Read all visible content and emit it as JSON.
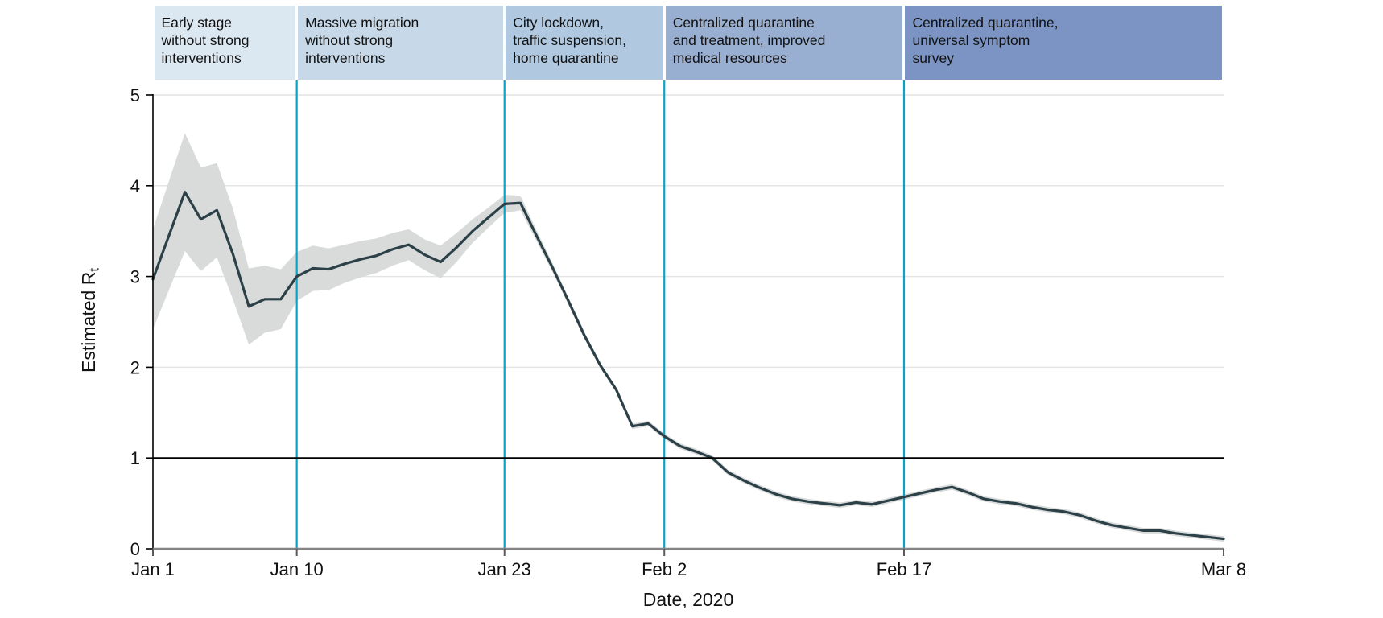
{
  "figure": {
    "x_axis_title": "Date, 2020",
    "y_axis_title": "Estimated R",
    "y_axis_title_sub": "t"
  },
  "colors": {
    "background": "#ffffff",
    "line": "#2c4048",
    "ci_band": "#d8dbda",
    "divider": "#0aa2c5",
    "reference_line": "#000000",
    "gridline": "#e4e4e4",
    "x_axis": "#848484",
    "y_axis": "#000000",
    "tick": "#5a5a5a",
    "text": "#111111"
  },
  "phases": [
    {
      "label": "Early stage without strong interventions",
      "lines": [
        "Early stage",
        "without strong",
        "interventions"
      ],
      "start": "Jan 1",
      "end": "Jan 10",
      "start_day": 0,
      "end_day": 9,
      "color": "#dce8f1"
    },
    {
      "label": "Massive migration without strong interventions",
      "lines": [
        "Massive migration",
        "without strong",
        "interventions"
      ],
      "start": "Jan 10",
      "end": "Jan 23",
      "start_day": 9,
      "end_day": 22,
      "color": "#c7d9e8"
    },
    {
      "label": "City lockdown, traffic suspension, home quarantine",
      "lines": [
        "City lockdown,",
        "traffic suspension,",
        "home quarantine"
      ],
      "start": "Jan 23",
      "end": "Feb 2",
      "start_day": 22,
      "end_day": 32,
      "color": "#b1c9e0"
    },
    {
      "label": "Centralized quarantine and treatment, improved medical resources",
      "lines": [
        "Centralized quarantine",
        "and treatment, improved",
        "medical resources"
      ],
      "start": "Feb 2",
      "end": "Feb 17",
      "start_day": 32,
      "end_day": 47,
      "color": "#99afd1"
    },
    {
      "label": "Centralized quarantine, universal symptom survey",
      "lines": [
        "Centralized quarantine,",
        "universal symptom",
        "survey"
      ],
      "start": "Feb 17",
      "end": "Mar 8",
      "start_day": 47,
      "end_day": 67,
      "color": "#7b94c3"
    }
  ],
  "chart_data": {
    "type": "line",
    "title": "",
    "xlabel": "Date, 2020",
    "ylabel": "Estimated Rt",
    "ylim": [
      0,
      5
    ],
    "grid": "horizontal",
    "legend": "none",
    "reference_line_y": 1,
    "vertical_divider_days": [
      9,
      22,
      32,
      47
    ],
    "x_ticks": [
      {
        "label": "Jan 1",
        "day": 0
      },
      {
        "label": "Jan 10",
        "day": 9
      },
      {
        "label": "Jan 23",
        "day": 22
      },
      {
        "label": "Feb 2",
        "day": 32
      },
      {
        "label": "Feb 17",
        "day": 47
      },
      {
        "label": "Mar 8",
        "day": 67
      }
    ],
    "y_ticks": [
      {
        "label": "0",
        "value": 0
      },
      {
        "label": "1",
        "value": 1
      },
      {
        "label": "2",
        "value": 2
      },
      {
        "label": "3",
        "value": 3
      },
      {
        "label": "4",
        "value": 4
      },
      {
        "label": "5",
        "value": 5
      }
    ],
    "dates": [
      "Jan 1",
      "Jan 2",
      "Jan 3",
      "Jan 4",
      "Jan 5",
      "Jan 6",
      "Jan 7",
      "Jan 8",
      "Jan 9",
      "Jan 10",
      "Jan 11",
      "Jan 12",
      "Jan 13",
      "Jan 14",
      "Jan 15",
      "Jan 16",
      "Jan 17",
      "Jan 18",
      "Jan 19",
      "Jan 20",
      "Jan 21",
      "Jan 22",
      "Jan 23",
      "Jan 24",
      "Jan 25",
      "Jan 26",
      "Jan 27",
      "Jan 28",
      "Jan 29",
      "Jan 30",
      "Jan 31",
      "Feb 1",
      "Feb 2",
      "Feb 3",
      "Feb 4",
      "Feb 5",
      "Feb 6",
      "Feb 7",
      "Feb 8",
      "Feb 9",
      "Feb 10",
      "Feb 11",
      "Feb 12",
      "Feb 13",
      "Feb 14",
      "Feb 15",
      "Feb 16",
      "Feb 17",
      "Feb 18",
      "Feb 19",
      "Feb 20",
      "Feb 21",
      "Feb 22",
      "Feb 23",
      "Feb 24",
      "Feb 25",
      "Feb 26",
      "Feb 27",
      "Feb 28",
      "Feb 29",
      "Mar 1",
      "Mar 2",
      "Mar 3",
      "Mar 4",
      "Mar 5",
      "Mar 6",
      "Mar 7",
      "Mar 8"
    ],
    "series": [
      {
        "name": "Estimated Rt (mean)",
        "values": [
          2.97,
          3.45,
          3.93,
          3.63,
          3.73,
          3.25,
          2.67,
          2.75,
          2.75,
          3.0,
          3.09,
          3.08,
          3.14,
          3.19,
          3.23,
          3.3,
          3.35,
          3.24,
          3.16,
          3.32,
          3.5,
          3.65,
          3.8,
          3.81,
          3.45,
          3.1,
          2.73,
          2.35,
          2.02,
          1.75,
          1.35,
          1.38,
          1.24,
          1.13,
          1.07,
          1.0,
          0.84,
          0.75,
          0.67,
          0.6,
          0.55,
          0.52,
          0.5,
          0.48,
          0.51,
          0.49,
          0.53,
          0.57,
          0.61,
          0.65,
          0.68,
          0.62,
          0.55,
          0.52,
          0.5,
          0.46,
          0.43,
          0.41,
          0.37,
          0.31,
          0.26,
          0.23,
          0.2,
          0.2,
          0.17,
          0.15,
          0.13,
          0.11
        ]
      },
      {
        "name": "CI lower",
        "values": [
          2.42,
          2.85,
          3.28,
          3.06,
          3.21,
          2.75,
          2.25,
          2.38,
          2.42,
          2.73,
          2.84,
          2.85,
          2.93,
          2.99,
          3.04,
          3.12,
          3.18,
          3.07,
          2.98,
          3.16,
          3.37,
          3.54,
          3.7,
          3.73,
          3.39,
          3.05,
          2.69,
          2.31,
          1.99,
          1.72,
          1.32,
          1.35,
          1.21,
          1.1,
          1.04,
          0.97,
          0.81,
          0.72,
          0.64,
          0.57,
          0.52,
          0.49,
          0.47,
          0.45,
          0.48,
          0.46,
          0.5,
          0.54,
          0.58,
          0.62,
          0.65,
          0.59,
          0.52,
          0.49,
          0.47,
          0.43,
          0.4,
          0.38,
          0.34,
          0.28,
          0.23,
          0.2,
          0.17,
          0.17,
          0.14,
          0.12,
          0.1,
          0.08
        ]
      },
      {
        "name": "CI upper",
        "values": [
          3.52,
          4.05,
          4.58,
          4.2,
          4.25,
          3.75,
          3.09,
          3.12,
          3.08,
          3.27,
          3.34,
          3.31,
          3.35,
          3.39,
          3.42,
          3.48,
          3.52,
          3.41,
          3.34,
          3.48,
          3.63,
          3.76,
          3.9,
          3.89,
          3.51,
          3.15,
          2.77,
          2.39,
          2.05,
          1.78,
          1.38,
          1.41,
          1.27,
          1.16,
          1.1,
          1.03,
          0.87,
          0.78,
          0.7,
          0.63,
          0.58,
          0.55,
          0.53,
          0.51,
          0.54,
          0.52,
          0.56,
          0.6,
          0.64,
          0.68,
          0.71,
          0.65,
          0.58,
          0.55,
          0.53,
          0.49,
          0.46,
          0.44,
          0.4,
          0.34,
          0.29,
          0.26,
          0.23,
          0.23,
          0.2,
          0.18,
          0.16,
          0.14
        ]
      }
    ]
  }
}
